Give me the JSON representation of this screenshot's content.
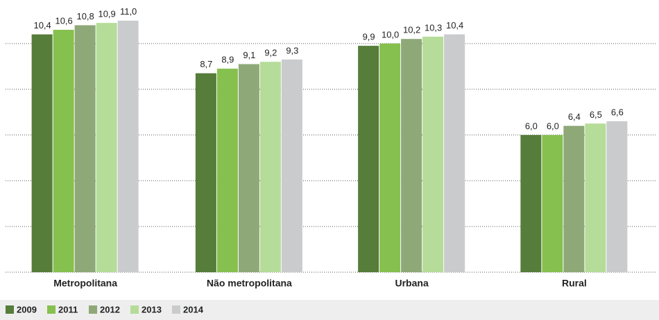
{
  "chart_data": {
    "type": "bar",
    "categories": [
      "Metropolitana",
      "Não metropolitana",
      "Urbana",
      "Rural"
    ],
    "series": [
      {
        "name": "2009",
        "color": "#567d3a",
        "values": [
          10.4,
          8.7,
          9.9,
          6.0
        ],
        "value_labels": [
          "10,4",
          "8,7",
          "9,9",
          "6,0"
        ]
      },
      {
        "name": "2011",
        "color": "#86c04f",
        "values": [
          10.6,
          8.9,
          10.0,
          6.0
        ],
        "value_labels": [
          "10,6",
          "8,9",
          "10,0",
          "6,0"
        ]
      },
      {
        "name": "2012",
        "color": "#8fa878",
        "values": [
          10.8,
          9.1,
          10.2,
          6.4
        ],
        "value_labels": [
          "10,8",
          "9,1",
          "10,2",
          "6,4"
        ]
      },
      {
        "name": "2013",
        "color": "#b5dc98",
        "values": [
          10.9,
          9.2,
          10.3,
          6.5
        ],
        "value_labels": [
          "10,9",
          "9,2",
          "10,3",
          "6,5"
        ]
      },
      {
        "name": "2014",
        "color": "#c9cbcd",
        "values": [
          11.0,
          9.3,
          10.4,
          6.6
        ],
        "value_labels": [
          "11,0",
          "9,3",
          "10,4",
          "6,6"
        ]
      }
    ],
    "ylim": [
      0,
      11.6
    ],
    "yticks": [
      0,
      2,
      4,
      6,
      8,
      10
    ],
    "grid": true,
    "legend": "bottom"
  }
}
